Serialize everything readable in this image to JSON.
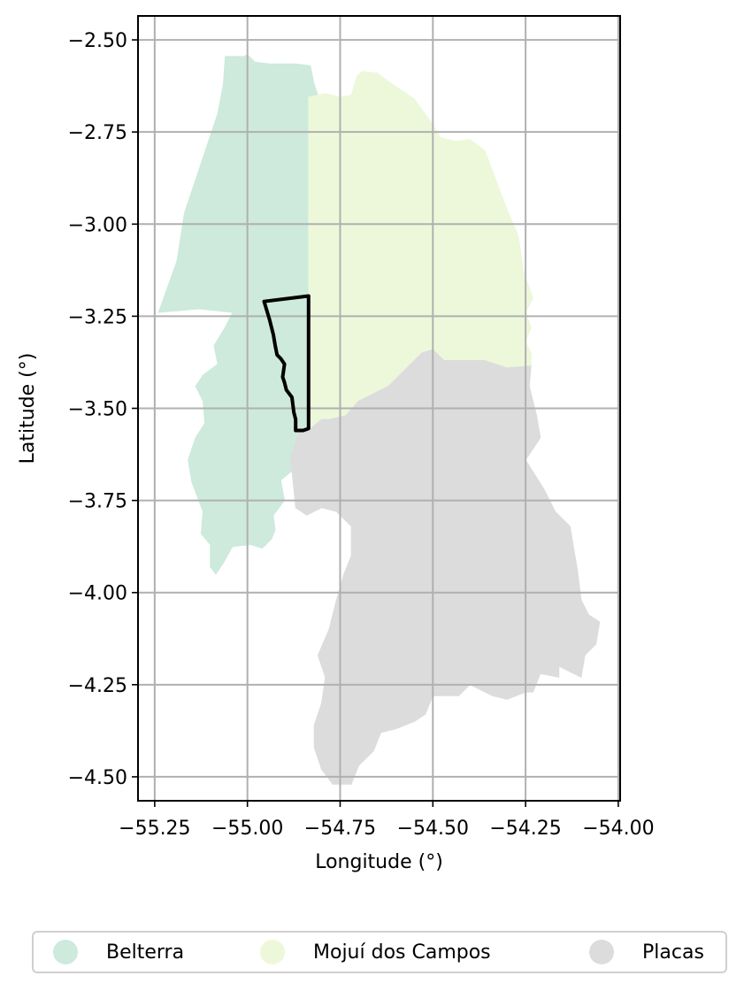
{
  "chart_data": {
    "type": "map",
    "xlabel": "Longitude (°)",
    "ylabel": "Latitude (°)",
    "xlim": [
      -55.295,
      -53.995
    ],
    "ylim": [
      -4.565,
      -2.435
    ],
    "x_ticks": [
      -55.25,
      -55.0,
      -54.75,
      -54.5,
      -54.25,
      -54.0
    ],
    "x_tick_labels": [
      "−55.25",
      "−55.00",
      "−54.75",
      "−54.50",
      "−54.25",
      "−54.00"
    ],
    "y_ticks": [
      -2.5,
      -2.75,
      -3.0,
      -3.25,
      -3.5,
      -3.75,
      -4.0,
      -4.25,
      -4.5
    ],
    "y_tick_labels": [
      "−2.50",
      "−2.75",
      "−3.00",
      "−3.25",
      "−3.50",
      "−3.75",
      "−4.00",
      "−4.25",
      "−4.50"
    ],
    "grid": true,
    "legend_position": "bottom-center",
    "regions": [
      {
        "name": "Belterra",
        "color": "#cdeadc",
        "polygon": [
          [
            -55.06,
            -2.545
          ],
          [
            -55.01,
            -2.545
          ],
          [
            -55.0,
            -2.54
          ],
          [
            -54.98,
            -2.56
          ],
          [
            -54.94,
            -2.565
          ],
          [
            -54.87,
            -2.565
          ],
          [
            -54.83,
            -2.57
          ],
          [
            -54.82,
            -2.62
          ],
          [
            -54.81,
            -2.65
          ],
          [
            -54.835,
            -2.655
          ],
          [
            -54.835,
            -3.205
          ],
          [
            -54.835,
            -3.555
          ],
          [
            -54.86,
            -3.56
          ],
          [
            -54.87,
            -3.59
          ],
          [
            -54.885,
            -3.64
          ],
          [
            -54.88,
            -3.67
          ],
          [
            -54.91,
            -3.695
          ],
          [
            -54.9,
            -3.75
          ],
          [
            -54.93,
            -3.79
          ],
          [
            -54.925,
            -3.83
          ],
          [
            -54.935,
            -3.855
          ],
          [
            -54.96,
            -3.88
          ],
          [
            -54.99,
            -3.87
          ],
          [
            -55.04,
            -3.875
          ],
          [
            -55.065,
            -3.92
          ],
          [
            -55.085,
            -3.95
          ],
          [
            -55.1,
            -3.93
          ],
          [
            -55.1,
            -3.87
          ],
          [
            -55.125,
            -3.84
          ],
          [
            -55.12,
            -3.78
          ],
          [
            -55.15,
            -3.7
          ],
          [
            -55.16,
            -3.64
          ],
          [
            -55.14,
            -3.58
          ],
          [
            -55.115,
            -3.54
          ],
          [
            -55.12,
            -3.48
          ],
          [
            -55.14,
            -3.44
          ],
          [
            -55.12,
            -3.41
          ],
          [
            -55.08,
            -3.38
          ],
          [
            -55.09,
            -3.33
          ],
          [
            -55.06,
            -3.28
          ],
          [
            -55.04,
            -3.24
          ],
          [
            -55.13,
            -3.23
          ],
          [
            -55.24,
            -3.24
          ],
          [
            -55.19,
            -3.1
          ],
          [
            -55.17,
            -2.97
          ],
          [
            -55.13,
            -2.85
          ],
          [
            -55.08,
            -2.7
          ],
          [
            -55.065,
            -2.62
          ]
        ]
      },
      {
        "name": "Mojuí dos Campos",
        "color": "#edf8da",
        "polygon": [
          [
            -54.835,
            -2.655
          ],
          [
            -54.79,
            -2.645
          ],
          [
            -54.75,
            -2.655
          ],
          [
            -54.72,
            -2.65
          ],
          [
            -54.705,
            -2.6
          ],
          [
            -54.69,
            -2.585
          ],
          [
            -54.65,
            -2.59
          ],
          [
            -54.61,
            -2.62
          ],
          [
            -54.55,
            -2.66
          ],
          [
            -54.5,
            -2.73
          ],
          [
            -54.48,
            -2.765
          ],
          [
            -54.44,
            -2.775
          ],
          [
            -54.4,
            -2.77
          ],
          [
            -54.36,
            -2.8
          ],
          [
            -54.33,
            -2.88
          ],
          [
            -54.3,
            -2.96
          ],
          [
            -54.27,
            -3.03
          ],
          [
            -54.255,
            -3.13
          ],
          [
            -54.23,
            -3.2
          ],
          [
            -54.25,
            -3.24
          ],
          [
            -54.235,
            -3.28
          ],
          [
            -54.25,
            -3.32
          ],
          [
            -54.235,
            -3.35
          ],
          [
            -54.235,
            -3.385
          ],
          [
            -54.3,
            -3.39
          ],
          [
            -54.36,
            -3.37
          ],
          [
            -54.42,
            -3.37
          ],
          [
            -54.47,
            -3.37
          ],
          [
            -54.5,
            -3.34
          ],
          [
            -54.53,
            -3.35
          ],
          [
            -54.57,
            -3.39
          ],
          [
            -54.62,
            -3.44
          ],
          [
            -54.7,
            -3.48
          ],
          [
            -54.735,
            -3.52
          ],
          [
            -54.78,
            -3.53
          ],
          [
            -54.8,
            -3.53
          ],
          [
            -54.83,
            -3.555
          ],
          [
            -54.835,
            -3.205
          ]
        ]
      },
      {
        "name": "Placas",
        "color": "#dcdcdc",
        "polygon": [
          [
            -54.83,
            -3.555
          ],
          [
            -54.8,
            -3.53
          ],
          [
            -54.78,
            -3.53
          ],
          [
            -54.735,
            -3.52
          ],
          [
            -54.7,
            -3.48
          ],
          [
            -54.62,
            -3.44
          ],
          [
            -54.57,
            -3.39
          ],
          [
            -54.53,
            -3.35
          ],
          [
            -54.5,
            -3.34
          ],
          [
            -54.47,
            -3.37
          ],
          [
            -54.42,
            -3.37
          ],
          [
            -54.36,
            -3.37
          ],
          [
            -54.3,
            -3.39
          ],
          [
            -54.235,
            -3.385
          ],
          [
            -54.24,
            -3.44
          ],
          [
            -54.22,
            -3.52
          ],
          [
            -54.21,
            -3.58
          ],
          [
            -54.25,
            -3.64
          ],
          [
            -54.2,
            -3.72
          ],
          [
            -54.17,
            -3.78
          ],
          [
            -54.13,
            -3.82
          ],
          [
            -54.12,
            -3.88
          ],
          [
            -54.11,
            -3.94
          ],
          [
            -54.1,
            -4.02
          ],
          [
            -54.08,
            -4.06
          ],
          [
            -54.05,
            -4.08
          ],
          [
            -54.06,
            -4.14
          ],
          [
            -54.09,
            -4.17
          ],
          [
            -54.1,
            -4.23
          ],
          [
            -54.16,
            -4.2
          ],
          [
            -54.16,
            -4.23
          ],
          [
            -54.21,
            -4.22
          ],
          [
            -54.23,
            -4.27
          ],
          [
            -54.25,
            -4.27
          ],
          [
            -54.3,
            -4.29
          ],
          [
            -54.34,
            -4.28
          ],
          [
            -54.4,
            -4.25
          ],
          [
            -54.43,
            -4.28
          ],
          [
            -54.5,
            -4.28
          ],
          [
            -54.52,
            -4.33
          ],
          [
            -54.55,
            -4.35
          ],
          [
            -54.6,
            -4.37
          ],
          [
            -54.64,
            -4.38
          ],
          [
            -54.66,
            -4.43
          ],
          [
            -54.7,
            -4.47
          ],
          [
            -54.72,
            -4.52
          ],
          [
            -54.77,
            -4.52
          ],
          [
            -54.8,
            -4.48
          ],
          [
            -54.82,
            -4.42
          ],
          [
            -54.82,
            -4.36
          ],
          [
            -54.8,
            -4.3
          ],
          [
            -54.79,
            -4.23
          ],
          [
            -54.81,
            -4.17
          ],
          [
            -54.78,
            -4.1
          ],
          [
            -54.76,
            -4.02
          ],
          [
            -54.74,
            -3.95
          ],
          [
            -54.72,
            -3.9
          ],
          [
            -54.72,
            -3.82
          ],
          [
            -54.76,
            -3.78
          ],
          [
            -54.8,
            -3.77
          ],
          [
            -54.84,
            -3.79
          ],
          [
            -54.87,
            -3.77
          ],
          [
            -54.88,
            -3.67
          ],
          [
            -54.885,
            -3.64
          ],
          [
            -54.87,
            -3.59
          ],
          [
            -54.86,
            -3.56
          ]
        ]
      }
    ],
    "outline": {
      "color": "#000000",
      "polygon": [
        [
          -54.955,
          -3.21
        ],
        [
          -54.835,
          -3.195
        ],
        [
          -54.835,
          -3.555
        ],
        [
          -54.85,
          -3.56
        ],
        [
          -54.87,
          -3.56
        ],
        [
          -54.87,
          -3.53
        ],
        [
          -54.875,
          -3.51
        ],
        [
          -54.88,
          -3.47
        ],
        [
          -54.895,
          -3.45
        ],
        [
          -54.9,
          -3.43
        ],
        [
          -54.905,
          -3.415
        ],
        [
          -54.9,
          -3.38
        ],
        [
          -54.91,
          -3.365
        ],
        [
          -54.92,
          -3.355
        ],
        [
          -54.925,
          -3.33
        ],
        [
          -54.93,
          -3.3
        ],
        [
          -54.94,
          -3.26
        ]
      ]
    }
  },
  "legend": {
    "items": [
      {
        "label": "Belterra",
        "color": "#cdeadc"
      },
      {
        "label": "Mojuí dos Campos",
        "color": "#edf8da"
      },
      {
        "label": "Placas",
        "color": "#dcdcdc"
      }
    ]
  }
}
